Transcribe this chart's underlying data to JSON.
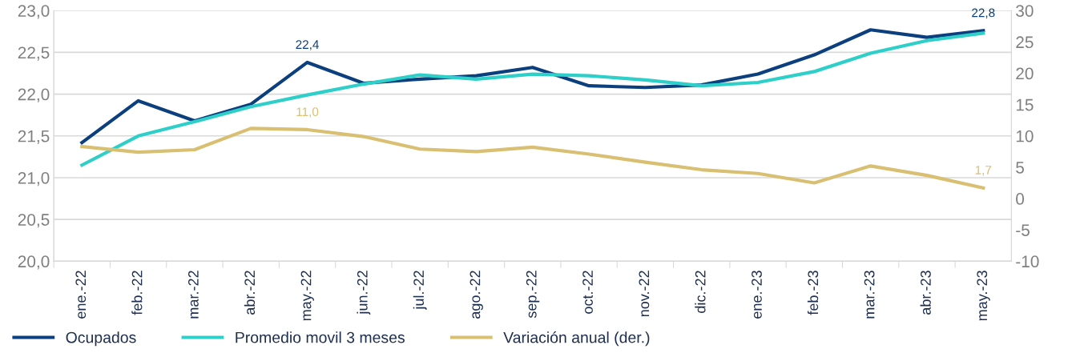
{
  "chart_data": {
    "type": "line",
    "categories": [
      "ene.-22",
      "feb.-22",
      "mar.-22",
      "abr.-22",
      "may.-22",
      "jun.-22",
      "jul.-22",
      "ago.-22",
      "sep.-22",
      "oct.-22",
      "nov.-22",
      "dic.-22",
      "ene.-23",
      "feb.-23",
      "mar.-23",
      "abr.-23",
      "may.-23"
    ],
    "series": [
      {
        "name": "Ocupados",
        "color": "#0b3f7e",
        "values": [
          21.42,
          21.92,
          21.68,
          21.88,
          22.38,
          22.13,
          22.18,
          22.22,
          22.32,
          22.1,
          22.08,
          22.11,
          22.24,
          22.47,
          22.77,
          22.68,
          22.76
        ],
        "value_labels": [
          null,
          null,
          null,
          null,
          "22,4",
          null,
          null,
          null,
          null,
          null,
          null,
          null,
          null,
          null,
          null,
          null,
          "22,8"
        ]
      },
      {
        "name": "Promedio movil 3 meses",
        "color": "#2ecfc9",
        "values": [
          21.15,
          21.5,
          21.67,
          21.85,
          21.99,
          22.12,
          22.23,
          22.18,
          22.24,
          22.22,
          22.17,
          22.1,
          22.14,
          22.27,
          22.49,
          22.64,
          22.73
        ]
      },
      {
        "name": "Variación anual (der.)",
        "color": "#d9bf72",
        "axis": "y2",
        "values": [
          8.3,
          7.4,
          7.8,
          11.2,
          11.0,
          9.9,
          7.9,
          7.5,
          8.2,
          7.1,
          5.8,
          4.6,
          4.0,
          2.5,
          5.2,
          3.7,
          1.7
        ],
        "value_labels": [
          null,
          null,
          null,
          null,
          "11,0",
          null,
          null,
          null,
          null,
          null,
          null,
          null,
          null,
          null,
          null,
          null,
          "1,7"
        ]
      }
    ],
    "ylim": [
      20.0,
      23.0
    ],
    "yticks": [
      {
        "value": 20.0,
        "label": "20,0"
      },
      {
        "value": 20.5,
        "label": "20,5"
      },
      {
        "value": 21.0,
        "label": "21,0"
      },
      {
        "value": 21.5,
        "label": "21,5"
      },
      {
        "value": 22.0,
        "label": "22,0"
      },
      {
        "value": 22.5,
        "label": "22,5"
      },
      {
        "value": 23.0,
        "label": "23,0"
      }
    ],
    "y2lim": [
      -10,
      30
    ],
    "y2ticks": [
      -10,
      -5,
      0,
      5,
      10,
      15,
      20,
      25,
      30
    ],
    "grid": "y",
    "legend": "bottom",
    "marker": "none",
    "line_style": "solid"
  }
}
